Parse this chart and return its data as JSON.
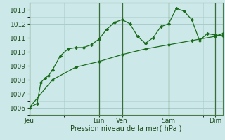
{
  "background_color": "#cce8e8",
  "grid_color": "#aacccc",
  "line_color": "#1a6b1a",
  "marker_color": "#1a6b1a",
  "title": "Pression niveau de la mer( hPa )",
  "ylim": [
    1005.5,
    1013.5
  ],
  "yticks": [
    1006,
    1007,
    1008,
    1009,
    1010,
    1011,
    1012,
    1013
  ],
  "x_day_labels": [
    "Jeu",
    "Lun",
    "Ven",
    "Sam",
    "Dim"
  ],
  "x_day_positions": [
    0,
    9,
    12,
    18,
    24
  ],
  "xlim": [
    0,
    25
  ],
  "series1_x": [
    0,
    1,
    1.5,
    2,
    2.5,
    3,
    4,
    5,
    6,
    7,
    8,
    9,
    10,
    11,
    12,
    13,
    14,
    15,
    16,
    17,
    18,
    19,
    20,
    21,
    22,
    23,
    24,
    25
  ],
  "series1_y": [
    1006.0,
    1006.3,
    1007.8,
    1008.1,
    1008.3,
    1008.7,
    1009.7,
    1010.2,
    1010.3,
    1010.3,
    1010.5,
    1010.9,
    1011.6,
    1012.1,
    1012.3,
    1012.0,
    1011.1,
    1010.6,
    1011.0,
    1011.8,
    1012.0,
    1013.1,
    1012.9,
    1012.3,
    1010.8,
    1011.3,
    1011.2,
    1011.15
  ],
  "series2_x": [
    0,
    3,
    6,
    9,
    12,
    15,
    18,
    21,
    24,
    25
  ],
  "series2_y": [
    1006.0,
    1008.0,
    1008.9,
    1009.3,
    1009.8,
    1010.2,
    1010.5,
    1010.8,
    1011.1,
    1011.3
  ],
  "vline_color": "#3a6b3a",
  "title_fontsize": 7,
  "tick_fontsize": 6.5
}
